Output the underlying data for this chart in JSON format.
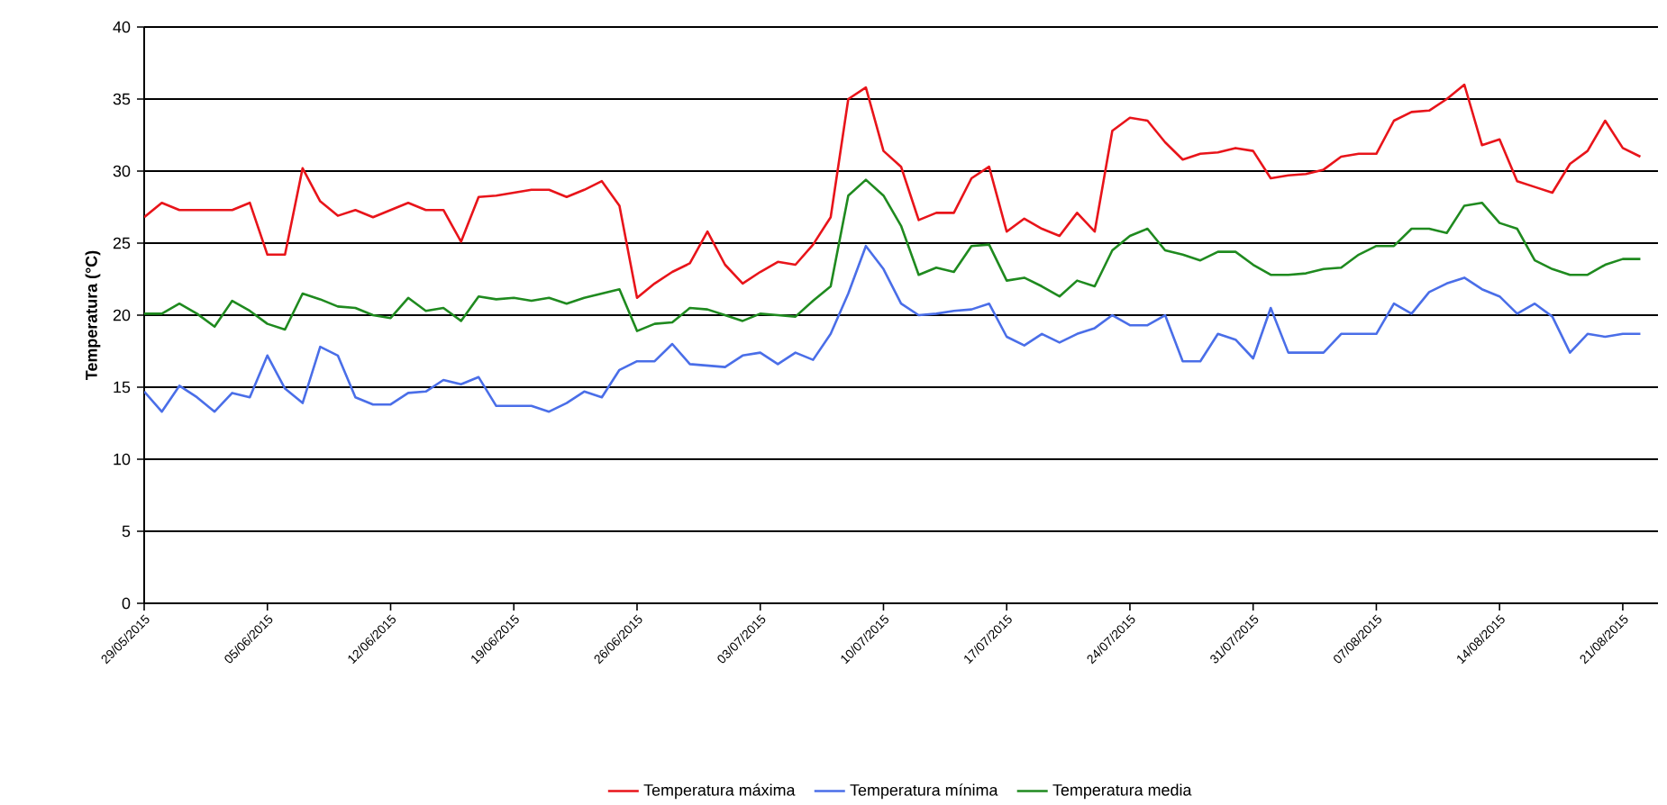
{
  "chart_data": {
    "type": "line",
    "ylabel": "Temperatura (°C)",
    "x": [
      "2015-05-29",
      "2015-05-30",
      "2015-05-31",
      "2015-06-01",
      "2015-06-02",
      "2015-06-03",
      "2015-06-04",
      "2015-06-05",
      "2015-06-06",
      "2015-06-07",
      "2015-06-08",
      "2015-06-09",
      "2015-06-10",
      "2015-06-11",
      "2015-06-12",
      "2015-06-13",
      "2015-06-14",
      "2015-06-15",
      "2015-06-16",
      "2015-06-17",
      "2015-06-18",
      "2015-06-19",
      "2015-06-20",
      "2015-06-21",
      "2015-06-22",
      "2015-06-23",
      "2015-06-24",
      "2015-06-25",
      "2015-06-26",
      "2015-06-27",
      "2015-06-28",
      "2015-06-29",
      "2015-06-30",
      "2015-07-01",
      "2015-07-02",
      "2015-07-03",
      "2015-07-04",
      "2015-07-05",
      "2015-07-06",
      "2015-07-07",
      "2015-07-08",
      "2015-07-09",
      "2015-07-10",
      "2015-07-11",
      "2015-07-12",
      "2015-07-13",
      "2015-07-14",
      "2015-07-15",
      "2015-07-16",
      "2015-07-17",
      "2015-07-18",
      "2015-07-19",
      "2015-07-20",
      "2015-07-21",
      "2015-07-22",
      "2015-07-23",
      "2015-07-24",
      "2015-07-25",
      "2015-07-26",
      "2015-07-27",
      "2015-07-28",
      "2015-07-29",
      "2015-07-30",
      "2015-07-31",
      "2015-08-01",
      "2015-08-02",
      "2015-08-03",
      "2015-08-04",
      "2015-08-05",
      "2015-08-06",
      "2015-08-07",
      "2015-08-08",
      "2015-08-09",
      "2015-08-10",
      "2015-08-11",
      "2015-08-12",
      "2015-08-13",
      "2015-08-14",
      "2015-08-15",
      "2015-08-16",
      "2015-08-17",
      "2015-08-18",
      "2015-08-19",
      "2015-08-20",
      "2015-08-21",
      "2015-08-22"
    ],
    "series": [
      {
        "name": "Temperatura máxima",
        "color": "#e8141a",
        "values": [
          26.8,
          27.8,
          27.3,
          27.3,
          27.3,
          27.3,
          27.8,
          24.2,
          24.2,
          30.2,
          27.9,
          26.9,
          27.3,
          26.8,
          27.3,
          27.8,
          27.3,
          27.3,
          25.1,
          28.2,
          28.3,
          28.5,
          28.7,
          28.7,
          28.2,
          28.7,
          29.3,
          27.6,
          21.2,
          22.2,
          23.0,
          23.6,
          25.8,
          23.5,
          22.2,
          23.0,
          23.7,
          23.5,
          24.9,
          26.8,
          35.0,
          35.8,
          31.4,
          30.3,
          26.6,
          27.1,
          27.1,
          29.5,
          30.3,
          25.8,
          26.7,
          26.0,
          25.5,
          27.1,
          25.8,
          32.8,
          33.7,
          33.5,
          32.0,
          30.8,
          31.2,
          31.3,
          31.6,
          31.4,
          29.5,
          29.7,
          29.8,
          30.1,
          31.0,
          31.2,
          31.2,
          33.5,
          34.1,
          34.2,
          35.0,
          36.0,
          31.8,
          32.2,
          29.3,
          28.9,
          28.5,
          30.5,
          31.4,
          33.5,
          31.6,
          31.0
        ]
      },
      {
        "name": "Temperatura mínima",
        "color": "#4a6ee8",
        "values": [
          14.7,
          13.3,
          15.1,
          14.3,
          13.3,
          14.6,
          14.3,
          17.2,
          14.9,
          13.9,
          17.8,
          17.2,
          14.3,
          13.8,
          13.8,
          14.6,
          14.7,
          15.5,
          15.2,
          15.7,
          13.7,
          13.7,
          13.7,
          13.3,
          13.9,
          14.7,
          14.3,
          16.2,
          16.8,
          16.8,
          18.0,
          16.6,
          16.5,
          16.4,
          17.2,
          17.4,
          16.6,
          17.4,
          16.9,
          18.7,
          21.5,
          24.8,
          23.2,
          20.8,
          20.0,
          20.1,
          20.3,
          20.4,
          20.8,
          18.5,
          17.9,
          18.7,
          18.1,
          18.7,
          19.1,
          20.0,
          19.3,
          19.3,
          20.0,
          16.8,
          16.8,
          18.7,
          18.3,
          17.0,
          20.5,
          17.4,
          17.4,
          17.4,
          18.7,
          18.7,
          18.7,
          20.8,
          20.1,
          21.6,
          22.2,
          22.6,
          21.8,
          21.3,
          20.1,
          20.8,
          19.9,
          17.4,
          18.7,
          18.5,
          18.7,
          18.7
        ]
      },
      {
        "name": "Temperatura media",
        "color": "#1f8a1f",
        "values": [
          20.1,
          20.1,
          20.8,
          20.1,
          19.2,
          21.0,
          20.3,
          19.4,
          19.0,
          21.5,
          21.1,
          20.6,
          20.5,
          20.0,
          19.8,
          21.2,
          20.3,
          20.5,
          19.6,
          21.3,
          21.1,
          21.2,
          21.0,
          21.2,
          20.8,
          21.2,
          21.5,
          21.8,
          18.9,
          19.4,
          19.5,
          20.5,
          20.4,
          20.0,
          19.6,
          20.1,
          20.0,
          19.9,
          21.0,
          22.0,
          28.3,
          29.4,
          28.3,
          26.2,
          22.8,
          23.3,
          23.0,
          24.8,
          24.9,
          22.4,
          22.6,
          22.0,
          21.3,
          22.4,
          22.0,
          24.5,
          25.5,
          26.0,
          24.5,
          24.2,
          23.8,
          24.4,
          24.4,
          23.5,
          22.8,
          22.8,
          22.9,
          23.2,
          23.3,
          24.2,
          24.8,
          24.8,
          26.0,
          26.0,
          25.7,
          27.6,
          27.8,
          26.4,
          26.0,
          23.8,
          23.2,
          22.8,
          22.8,
          23.5,
          23.9,
          23.9
        ]
      }
    ],
    "xlim": [
      "2015-05-29",
      "2015-08-23"
    ],
    "xticks": [
      {
        "value": "2015-05-29",
        "label": "29/05/2015"
      },
      {
        "value": "2015-06-05",
        "label": "05/06/2015"
      },
      {
        "value": "2015-06-12",
        "label": "12/06/2015"
      },
      {
        "value": "2015-06-19",
        "label": "19/06/2015"
      },
      {
        "value": "2015-06-26",
        "label": "26/06/2015"
      },
      {
        "value": "2015-07-03",
        "label": "03/07/2015"
      },
      {
        "value": "2015-07-10",
        "label": "10/07/2015"
      },
      {
        "value": "2015-07-17",
        "label": "17/07/2015"
      },
      {
        "value": "2015-07-24",
        "label": "24/07/2015"
      },
      {
        "value": "2015-07-31",
        "label": "31/07/2015"
      },
      {
        "value": "2015-08-07",
        "label": "07/08/2015"
      },
      {
        "value": "2015-08-14",
        "label": "14/08/2015"
      },
      {
        "value": "2015-08-21",
        "label": "21/08/2015"
      }
    ],
    "ylim": [
      0,
      40
    ],
    "yticks": [
      0,
      5,
      10,
      15,
      20,
      25,
      30,
      35,
      40
    ],
    "grid": "y",
    "legend": "bottom"
  }
}
